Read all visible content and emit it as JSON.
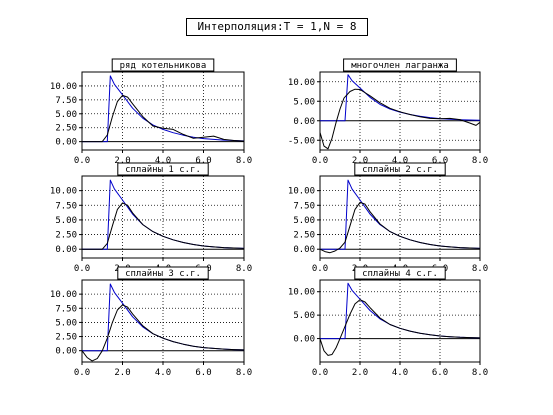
{
  "page": {
    "title": "Интерполяция:T = 1,N = 8"
  },
  "style": {
    "exact_color": "#0000cc",
    "approx_color": "#000000",
    "grid_color": "#000000"
  },
  "chart_data": [
    {
      "type": "line",
      "title": "ряд котельникова",
      "xlim": [
        0,
        8
      ],
      "ylim": [
        -1.5,
        12.5
      ],
      "yticks": [
        0,
        2.5,
        5,
        7.5,
        10
      ],
      "ytick_labels": [
        "0.00",
        "2.50",
        "5.00",
        "7.50",
        "10.00"
      ],
      "xticks": [
        0,
        2,
        4,
        6,
        8
      ],
      "xtick_labels": [
        "0.0",
        "2.0",
        "4.0",
        "6.0",
        "8.0"
      ],
      "grid": true,
      "series": [
        {
          "x": [
            0,
            0.3,
            0.6,
            0.9,
            1.1,
            1.25,
            1.4,
            1.6,
            2.0,
            2.5,
            3.0,
            3.5,
            4.0,
            4.5,
            5.0,
            5.5,
            6.0,
            6.5,
            7.0,
            7.5,
            8.0
          ],
          "y": [
            0,
            0,
            0,
            0,
            0,
            0,
            11.8,
            10.3,
            8.4,
            6.0,
            4.2,
            3.0,
            2.2,
            1.6,
            1.15,
            0.8,
            0.55,
            0.4,
            0.28,
            0.2,
            0.14
          ]
        },
        {
          "x": [
            0,
            0.5,
            1.0,
            1.25,
            1.5,
            1.75,
            2.0,
            2.25,
            2.5,
            3.0,
            3.5,
            4.0,
            4.5,
            5.0,
            5.5,
            6.0,
            6.5,
            7.0,
            7.5,
            8.0
          ],
          "y": [
            0,
            0,
            0,
            1.2,
            4.5,
            7.2,
            8.3,
            8.0,
            6.8,
            4.5,
            2.8,
            2.4,
            2.2,
            1.3,
            0.6,
            0.8,
            1.0,
            0.4,
            0.2,
            0.1
          ]
        }
      ]
    },
    {
      "type": "line",
      "title": "многочлен лагранжа",
      "xlim": [
        0,
        8
      ],
      "ylim": [
        -7.5,
        12.5
      ],
      "yticks": [
        -5,
        0,
        5,
        10
      ],
      "ytick_labels": [
        "-5.00",
        "0.00",
        "5.00",
        "10.00"
      ],
      "xticks": [
        0,
        2,
        4,
        6,
        8
      ],
      "xtick_labels": [
        "0.0",
        "2.0",
        "4.0",
        "6.0",
        "8.0"
      ],
      "grid": true,
      "series": [
        {
          "x": [
            0,
            0.3,
            0.6,
            0.9,
            1.1,
            1.25,
            1.4,
            1.6,
            2.0,
            2.5,
            3.0,
            3.5,
            4.0,
            4.5,
            5.0,
            5.5,
            6.0,
            6.5,
            7.0,
            7.5,
            8.0
          ],
          "y": [
            0,
            0,
            0,
            0,
            0,
            0,
            11.8,
            10.3,
            8.4,
            6.0,
            4.2,
            3.0,
            2.2,
            1.6,
            1.15,
            0.8,
            0.55,
            0.4,
            0.28,
            0.2,
            0.14
          ]
        },
        {
          "x": [
            0,
            0.2,
            0.4,
            0.6,
            0.8,
            1.0,
            1.2,
            1.5,
            1.75,
            2.0,
            2.5,
            3.0,
            3.5,
            4.0,
            4.5,
            5.0,
            5.5,
            6.0,
            6.5,
            7.0,
            7.5,
            7.8,
            8.0
          ],
          "y": [
            -3.0,
            -6.5,
            -7.2,
            -4.5,
            -0.5,
            3.0,
            5.8,
            7.5,
            8.1,
            8.0,
            6.4,
            4.6,
            3.2,
            2.3,
            1.6,
            1.0,
            0.6,
            0.5,
            0.6,
            0.3,
            -0.6,
            -1.2,
            -0.4
          ]
        }
      ]
    },
    {
      "type": "line",
      "title": "сплайны 1 с.г.",
      "xlim": [
        0,
        8
      ],
      "ylim": [
        -1.5,
        12.5
      ],
      "yticks": [
        0,
        2.5,
        5,
        7.5,
        10
      ],
      "ytick_labels": [
        "0.00",
        "2.50",
        "5.00",
        "7.50",
        "10.00"
      ],
      "xticks": [
        0,
        2,
        4,
        6,
        8
      ],
      "xtick_labels": [
        "0.0",
        "2.0",
        "4.0",
        "6.0",
        "8.0"
      ],
      "grid": true,
      "series": [
        {
          "x": [
            0,
            0.3,
            0.6,
            0.9,
            1.1,
            1.25,
            1.4,
            1.6,
            2.0,
            2.5,
            3.0,
            3.5,
            4.0,
            4.5,
            5.0,
            5.5,
            6.0,
            6.5,
            7.0,
            7.5,
            8.0
          ],
          "y": [
            0,
            0,
            0,
            0,
            0,
            0,
            11.8,
            10.3,
            8.4,
            6.0,
            4.2,
            3.0,
            2.2,
            1.6,
            1.15,
            0.8,
            0.55,
            0.4,
            0.28,
            0.2,
            0.14
          ]
        },
        {
          "x": [
            0,
            1.0,
            1.25,
            1.5,
            1.75,
            2.0,
            2.25,
            2.5,
            3.0,
            3.5,
            4.0,
            4.5,
            5.0,
            5.5,
            6.0,
            6.5,
            7.0,
            7.5,
            8.0
          ],
          "y": [
            0,
            0,
            1.0,
            4.0,
            6.8,
            7.9,
            7.5,
            6.2,
            4.2,
            3.0,
            2.2,
            1.6,
            1.15,
            0.8,
            0.55,
            0.4,
            0.28,
            0.2,
            0.14
          ]
        }
      ]
    },
    {
      "type": "line",
      "title": "сплайны 2 с.г.",
      "xlim": [
        0,
        8
      ],
      "ylim": [
        -1.5,
        12.5
      ],
      "yticks": [
        0,
        2.5,
        5,
        7.5,
        10
      ],
      "ytick_labels": [
        "0.00",
        "2.50",
        "5.00",
        "7.50",
        "10.00"
      ],
      "xticks": [
        0,
        2,
        4,
        6,
        8
      ],
      "xtick_labels": [
        "0.0",
        "2.0",
        "4.0",
        "6.0",
        "8.0"
      ],
      "grid": true,
      "series": [
        {
          "x": [
            0,
            0.3,
            0.6,
            0.9,
            1.1,
            1.25,
            1.4,
            1.6,
            2.0,
            2.5,
            3.0,
            3.5,
            4.0,
            4.5,
            5.0,
            5.5,
            6.0,
            6.5,
            7.0,
            7.5,
            8.0
          ],
          "y": [
            0,
            0,
            0,
            0,
            0,
            0,
            11.8,
            10.3,
            8.4,
            6.0,
            4.2,
            3.0,
            2.2,
            1.6,
            1.15,
            0.8,
            0.55,
            0.4,
            0.28,
            0.2,
            0.14
          ]
        },
        {
          "x": [
            0,
            0.25,
            0.5,
            0.75,
            1.0,
            1.25,
            1.5,
            1.75,
            2.0,
            2.25,
            2.5,
            3.0,
            3.5,
            4.0,
            4.5,
            5.0,
            5.5,
            6.0,
            6.5,
            7.0,
            7.5,
            8.0
          ],
          "y": [
            0,
            -0.4,
            -0.6,
            -0.3,
            0.2,
            1.2,
            4.0,
            6.8,
            8.0,
            7.7,
            6.4,
            4.3,
            3.0,
            2.2,
            1.6,
            1.15,
            0.8,
            0.55,
            0.4,
            0.28,
            0.2,
            0.14
          ]
        }
      ]
    },
    {
      "type": "line",
      "title": "сплайны 3 с.г.",
      "xlim": [
        0,
        8
      ],
      "ylim": [
        -2.0,
        12.5
      ],
      "yticks": [
        0,
        2.5,
        5,
        7.5,
        10
      ],
      "ytick_labels": [
        "0.00",
        "2.50",
        "5.00",
        "7.50",
        "10.00"
      ],
      "xticks": [
        0,
        2,
        4,
        6,
        8
      ],
      "xtick_labels": [
        "0.0",
        "2.0",
        "4.0",
        "6.0",
        "8.0"
      ],
      "grid": true,
      "series": [
        {
          "x": [
            0,
            0.3,
            0.6,
            0.9,
            1.1,
            1.25,
            1.4,
            1.6,
            2.0,
            2.5,
            3.0,
            3.5,
            4.0,
            4.5,
            5.0,
            5.5,
            6.0,
            6.5,
            7.0,
            7.5,
            8.0
          ],
          "y": [
            0,
            0,
            0,
            0,
            0,
            0,
            11.8,
            10.3,
            8.4,
            6.0,
            4.2,
            3.0,
            2.2,
            1.6,
            1.15,
            0.8,
            0.55,
            0.4,
            0.28,
            0.2,
            0.14
          ]
        },
        {
          "x": [
            0,
            0.25,
            0.5,
            0.75,
            1.0,
            1.25,
            1.5,
            1.75,
            2.0,
            2.25,
            2.5,
            3.0,
            3.5,
            4.0,
            4.5,
            5.0,
            5.5,
            6.0,
            6.5,
            7.0,
            7.5,
            8.0
          ],
          "y": [
            0,
            -1.2,
            -1.8,
            -1.4,
            0.0,
            2.2,
            5.0,
            7.2,
            8.1,
            7.7,
            6.5,
            4.4,
            3.0,
            2.2,
            1.6,
            1.15,
            0.8,
            0.55,
            0.4,
            0.28,
            0.2,
            0.14
          ]
        }
      ]
    },
    {
      "type": "line",
      "title": "сплайны 4 с.г.",
      "xlim": [
        0,
        8
      ],
      "ylim": [
        -5.0,
        12.5
      ],
      "yticks": [
        0,
        5,
        10
      ],
      "ytick_labels": [
        "0.00",
        "5.00",
        "10.00"
      ],
      "xticks": [
        0,
        2,
        4,
        6,
        8
      ],
      "xtick_labels": [
        "0.0",
        "2.0",
        "4.0",
        "6.0",
        "8.0"
      ],
      "grid": true,
      "series": [
        {
          "x": [
            0,
            0.3,
            0.6,
            0.9,
            1.1,
            1.25,
            1.4,
            1.6,
            2.0,
            2.5,
            3.0,
            3.5,
            4.0,
            4.5,
            5.0,
            5.5,
            6.0,
            6.5,
            7.0,
            7.5,
            8.0
          ],
          "y": [
            0,
            0,
            0,
            0,
            0,
            0,
            11.8,
            10.3,
            8.4,
            6.0,
            4.2,
            3.0,
            2.2,
            1.6,
            1.15,
            0.8,
            0.55,
            0.4,
            0.28,
            0.2,
            0.14
          ]
        },
        {
          "x": [
            0,
            0.2,
            0.4,
            0.6,
            0.8,
            1.0,
            1.25,
            1.5,
            1.75,
            2.0,
            2.25,
            2.5,
            3.0,
            3.5,
            4.0,
            4.5,
            5.0,
            5.5,
            6.0,
            6.5,
            7.0,
            7.5,
            8.0
          ],
          "y": [
            0,
            -2.6,
            -3.6,
            -3.4,
            -2.0,
            0.0,
            2.6,
            5.2,
            7.4,
            8.3,
            7.8,
            6.6,
            4.4,
            3.0,
            2.2,
            1.6,
            1.15,
            0.8,
            0.55,
            0.4,
            0.28,
            0.2,
            0.14
          ]
        }
      ]
    }
  ]
}
